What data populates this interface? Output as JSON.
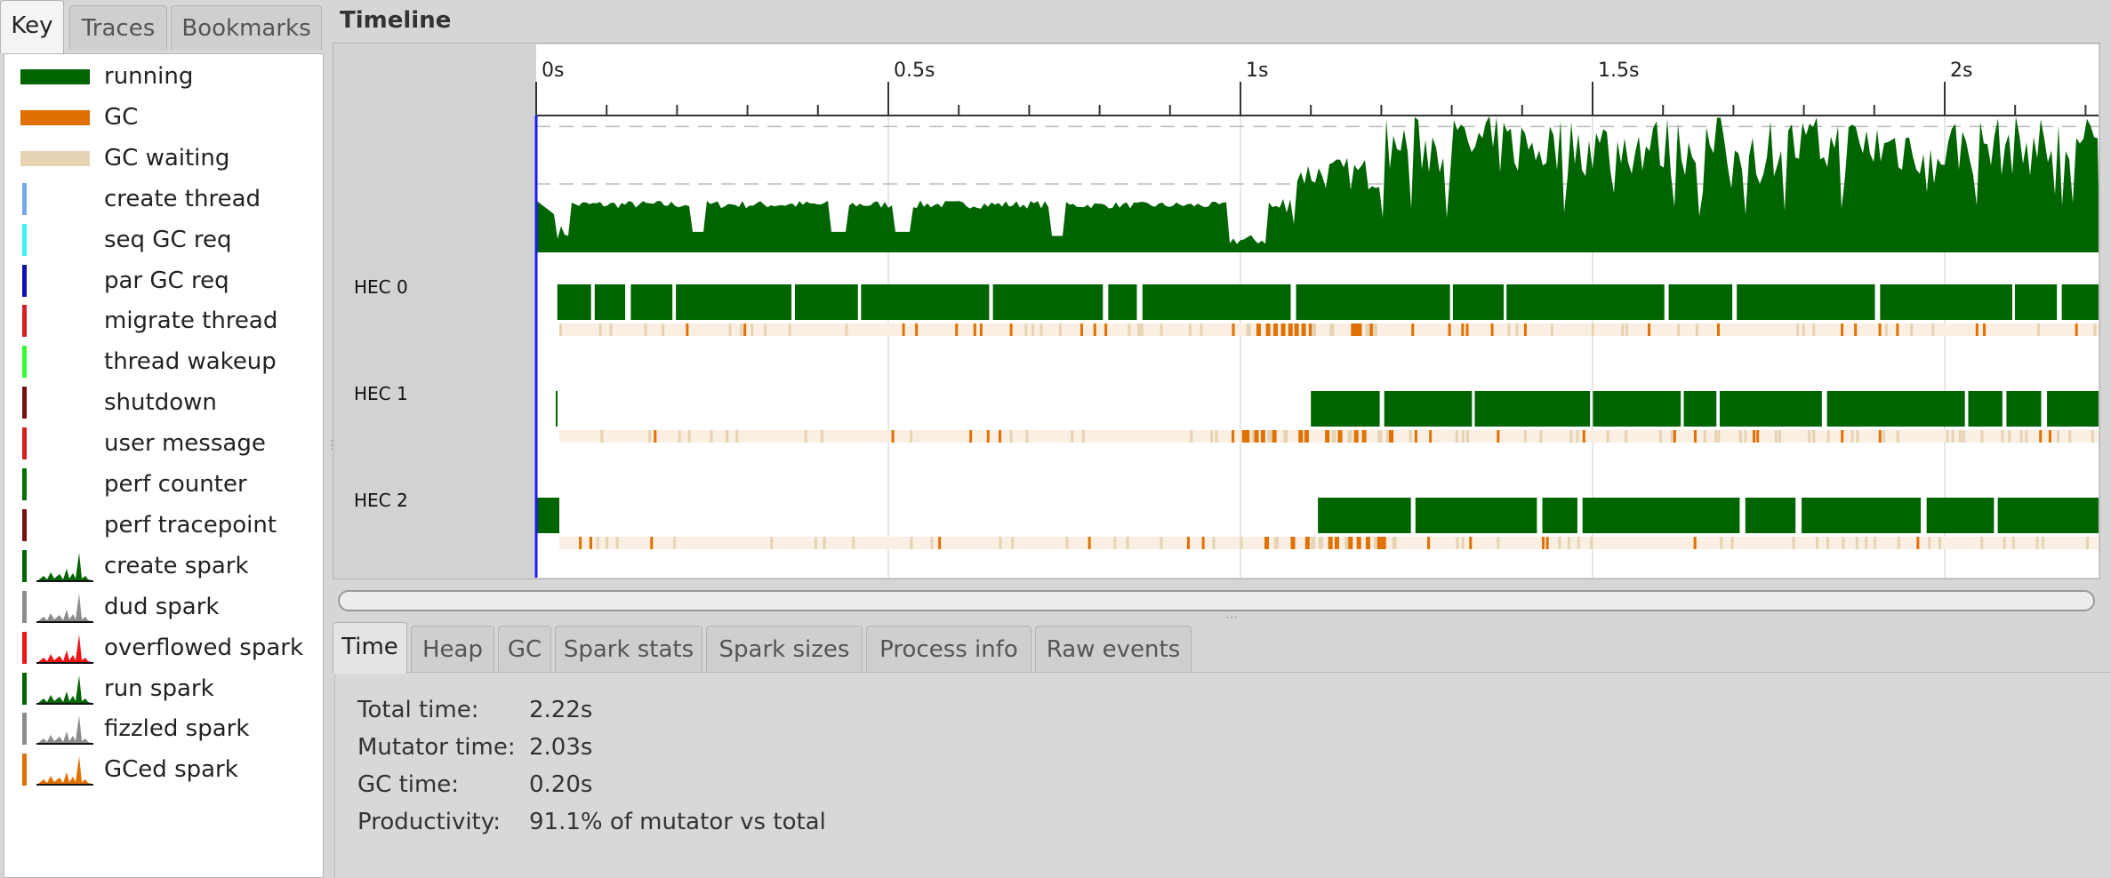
{
  "left_tabs": [
    "Key",
    "Traces",
    "Bookmarks"
  ],
  "key": [
    {
      "label": "running",
      "kind": "wide",
      "color": "#006400"
    },
    {
      "label": "GC",
      "kind": "wide",
      "color": "#e07000"
    },
    {
      "label": "GC waiting",
      "kind": "wide",
      "color": "#e6d3b3"
    },
    {
      "label": "create thread",
      "kind": "bar",
      "color": "#78a6ec"
    },
    {
      "label": "seq GC req",
      "kind": "bar",
      "color": "#3bf3f3"
    },
    {
      "label": "par GC req",
      "kind": "bar",
      "color": "#1010b8"
    },
    {
      "label": "migrate thread",
      "kind": "bar",
      "color": "#d42020"
    },
    {
      "label": "thread wakeup",
      "kind": "bar",
      "color": "#33ff33"
    },
    {
      "label": "shutdown",
      "kind": "bar",
      "color": "#7a1010"
    },
    {
      "label": "user message",
      "kind": "bar",
      "color": "#d42020"
    },
    {
      "label": "perf counter",
      "kind": "bar",
      "color": "#007000"
    },
    {
      "label": "perf tracepoint",
      "kind": "bar",
      "color": "#7a1010"
    },
    {
      "label": "create spark",
      "kind": "spark",
      "color": "#006400"
    },
    {
      "label": "dud spark",
      "kind": "spark",
      "color": "#8c8c8c"
    },
    {
      "label": "overflowed spark",
      "kind": "spark",
      "color": "#ee1515"
    },
    {
      "label": "run spark",
      "kind": "spark",
      "color": "#006400"
    },
    {
      "label": "fizzled spark",
      "kind": "spark",
      "color": "#8c8c8c"
    },
    {
      "label": "GCed spark",
      "kind": "spark",
      "color": "#e07000"
    }
  ],
  "timeline": {
    "title": "Timeline",
    "ticks": [
      "0s",
      "0.5s",
      "1s",
      "1.5s",
      "2s"
    ],
    "duration_s": 2.22,
    "hecs": [
      "HEC 0",
      "HEC 1",
      "HEC 2"
    ],
    "activity_levels": [
      0.0,
      0.5,
      1.0
    ],
    "colors": {
      "running": "#006400",
      "gc": "#e07000",
      "gc_waiting": "#e6d3b3",
      "cursor": "#1a1aff"
    }
  },
  "bottom_tabs": [
    "Time",
    "Heap",
    "GC",
    "Spark stats",
    "Spark sizes",
    "Process info",
    "Raw events"
  ],
  "stats": [
    {
      "label": "Total time:",
      "value": "2.22s"
    },
    {
      "label": "Mutator time:",
      "value": "2.03s"
    },
    {
      "label": "GC time:",
      "value": "0.20s"
    },
    {
      "label": "Productivity:",
      "value": "91.1% of mutator vs total"
    }
  ]
}
